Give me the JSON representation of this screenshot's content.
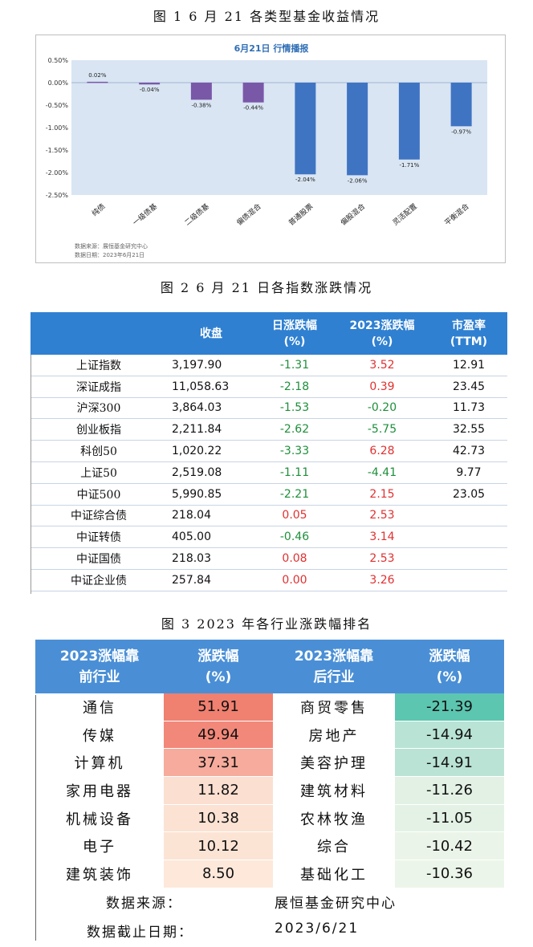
{
  "fig1": {
    "caption": "图 1   6 月 21 各类型基金收益情况",
    "source_line": "数据来源：展恒基金研究中心",
    "date_line": "数据日期：2023年6月21日",
    "chart_data": {
      "type": "bar",
      "title": "6月21日  行情播报",
      "categories": [
        "纯债",
        "一级债基",
        "二级债基",
        "偏债混合",
        "普通股票",
        "偏股混合",
        "灵活配置",
        "平衡混合"
      ],
      "values": [
        0.02,
        -0.04,
        -0.38,
        -0.44,
        -2.04,
        -2.06,
        -1.71,
        -0.97
      ],
      "value_labels": [
        "0.02%",
        "-0.04%",
        "-0.38%",
        "-0.44%",
        "-2.04%",
        "-2.06%",
        "-1.71%",
        "-0.97%"
      ],
      "bar_colors": [
        "#7a58a8",
        "#7a58a8",
        "#7a58a8",
        "#7a58a8",
        "#3f74c2",
        "#3f74c2",
        "#3f74c2",
        "#3f74c2"
      ],
      "ylim": [
        -2.5,
        0.5
      ],
      "yticks": [
        0.5,
        0.0,
        -0.5,
        -1.0,
        -1.5,
        -2.0,
        -2.5
      ],
      "ytick_labels": [
        "0.50%",
        "0.00%",
        "-0.50%",
        "-1.00%",
        "-1.50%",
        "-2.00%",
        "-2.50%"
      ],
      "plot_background": "#d9e5f3",
      "grid": false
    }
  },
  "fig2": {
    "caption": "图 2   6 月 21 日各指数涨跌情况",
    "headers": [
      "",
      "收盘",
      "日涨跌幅\n(%)",
      "2023涨跌幅\n(%)",
      "市盈率\n(TTM)"
    ],
    "rows": [
      {
        "name": "上证指数",
        "close": "3,197.90",
        "day": "-1.31",
        "day_dir": "down",
        "ytd": "3.52",
        "ytd_dir": "up",
        "pe": "12.91"
      },
      {
        "name": "深证成指",
        "close": "11,058.63",
        "day": "-2.18",
        "day_dir": "down",
        "ytd": "0.39",
        "ytd_dir": "up",
        "pe": "23.45"
      },
      {
        "name": "沪深300",
        "close": "3,864.03",
        "day": "-1.53",
        "day_dir": "down",
        "ytd": "-0.20",
        "ytd_dir": "down",
        "pe": "11.73"
      },
      {
        "name": "创业板指",
        "close": "2,211.84",
        "day": "-2.62",
        "day_dir": "down",
        "ytd": "-5.75",
        "ytd_dir": "down",
        "pe": "32.55"
      },
      {
        "name": "科创50",
        "close": "1,020.22",
        "day": "-3.33",
        "day_dir": "down",
        "ytd": "6.28",
        "ytd_dir": "up",
        "pe": "42.73"
      },
      {
        "name": "上证50",
        "close": "2,519.08",
        "day": "-1.11",
        "day_dir": "down",
        "ytd": "-4.41",
        "ytd_dir": "down",
        "pe": "9.77"
      },
      {
        "name": "中证500",
        "close": "5,990.85",
        "day": "-2.21",
        "day_dir": "down",
        "ytd": "2.15",
        "ytd_dir": "up",
        "pe": "23.05"
      },
      {
        "name": "中证综合债",
        "close": "218.04",
        "day": "0.05",
        "day_dir": "up",
        "ytd": "2.53",
        "ytd_dir": "up",
        "pe": ""
      },
      {
        "name": "中证转债",
        "close": "405.00",
        "day": "-0.46",
        "day_dir": "down",
        "ytd": "3.14",
        "ytd_dir": "up",
        "pe": ""
      },
      {
        "name": "中证国债",
        "close": "218.03",
        "day": "0.08",
        "day_dir": "up",
        "ytd": "2.53",
        "ytd_dir": "up",
        "pe": ""
      },
      {
        "name": "中证企业债",
        "close": "257.84",
        "day": "0.00",
        "day_dir": "up",
        "ytd": "3.26",
        "ytd_dir": "up",
        "pe": ""
      }
    ],
    "colors": {
      "up": "#e03030",
      "down": "#1e8f3a",
      "header": "#2f80d1"
    }
  },
  "fig3": {
    "caption": "图 3   2023 年各行业涨跌幅排名",
    "headers": [
      "2023涨幅靠\n前行业",
      "涨跌幅\n(%)",
      "2023涨幅靠\n后行业",
      "涨跌幅\n(%)"
    ],
    "rows": [
      {
        "top": "通信",
        "top_val": "51.91",
        "top_color": "#f08070",
        "bot": "商贸零售",
        "bot_val": "-21.39",
        "bot_color": "#5cc6b0"
      },
      {
        "top": "传媒",
        "top_val": "49.94",
        "top_color": "#f2887a",
        "bot": "房地产",
        "bot_val": "-14.94",
        "bot_color": "#b9e3d4"
      },
      {
        "top": "计算机",
        "top_val": "37.31",
        "top_color": "#f6ab9c",
        "bot": "美容护理",
        "bot_val": "-14.91",
        "bot_color": "#bae3d5"
      },
      {
        "top": "家用电器",
        "top_val": "11.82",
        "top_color": "#fbdfd0",
        "bot": "建筑材料",
        "bot_val": "-11.26",
        "bot_color": "#e2f1e4"
      },
      {
        "top": "机械设备",
        "top_val": "10.38",
        "top_color": "#fbe2d3",
        "bot": "农林牧渔",
        "bot_val": "-11.05",
        "bot_color": "#e4f2e5"
      },
      {
        "top": "电子",
        "top_val": "10.12",
        "top_color": "#fce4d5",
        "bot": "综合",
        "bot_val": "-10.42",
        "bot_color": "#ebf4e8"
      },
      {
        "top": "建筑装饰",
        "top_val": "8.50",
        "top_color": "#fde8da",
        "bot": "基础化工",
        "bot_val": "-10.36",
        "bot_color": "#ecf5e9"
      }
    ],
    "source_label": "数据来源：",
    "source_value": "展恒基金研究中心",
    "date_label": "数据截止日期：",
    "date_value": "2023/6/21"
  }
}
